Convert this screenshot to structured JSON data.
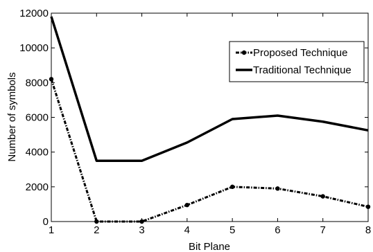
{
  "chart_data": {
    "type": "line",
    "title": "",
    "xlabel": "Bit Plane",
    "ylabel": "Number of symbols",
    "x": [
      1,
      2,
      3,
      4,
      5,
      6,
      7,
      8
    ],
    "xlim": [
      1,
      8
    ],
    "ylim": [
      0,
      12000
    ],
    "xticks": [
      "1",
      "2",
      "3",
      "4",
      "5",
      "6",
      "7",
      "8"
    ],
    "yticks": [
      "0",
      "2000",
      "4000",
      "6000",
      "8000",
      "10000",
      "12000"
    ],
    "grid": false,
    "legend_position": "top-right",
    "series": [
      {
        "name": "Proposed Technique",
        "values": [
          8200,
          0,
          0,
          950,
          2000,
          1900,
          1450,
          850
        ],
        "color": "#000000",
        "style": "dash-dot with circle markers"
      },
      {
        "name": "Traditional Technique",
        "values": [
          11800,
          3500,
          3500,
          4550,
          5900,
          6100,
          5750,
          5250
        ],
        "color": "#000000",
        "style": "solid thick"
      }
    ]
  }
}
